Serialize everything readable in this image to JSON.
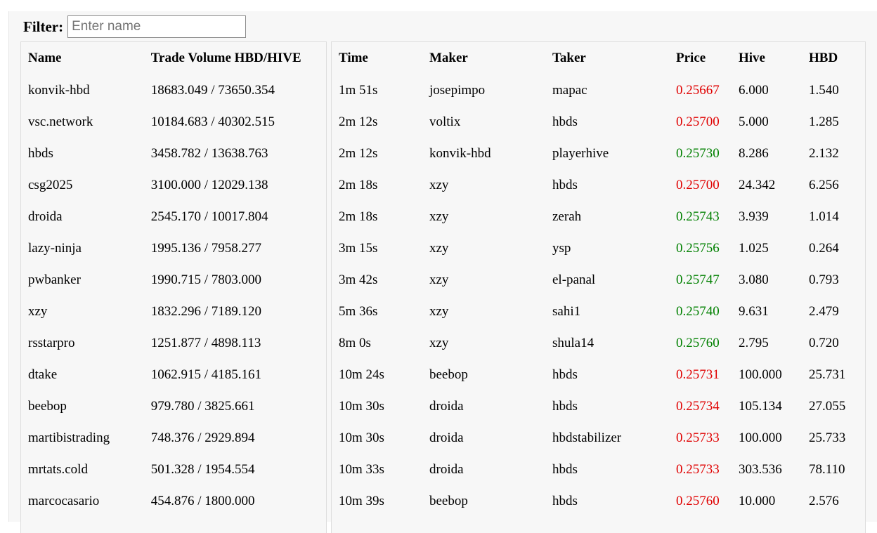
{
  "filter": {
    "label": "Filter:",
    "placeholder": "Enter name",
    "value": ""
  },
  "volume_table": {
    "headers": [
      "Name",
      "Trade Volume HBD/HIVE"
    ],
    "rows": [
      {
        "name": "konvik-hbd",
        "volume": "18683.049 / 73650.354"
      },
      {
        "name": "vsc.network",
        "volume": "10184.683 / 40302.515"
      },
      {
        "name": "hbds",
        "volume": "3458.782 / 13638.763"
      },
      {
        "name": "csg2025",
        "volume": "3100.000 / 12029.138"
      },
      {
        "name": "droida",
        "volume": "2545.170 / 10017.804"
      },
      {
        "name": "lazy-ninja",
        "volume": "1995.136 / 7958.277"
      },
      {
        "name": "pwbanker",
        "volume": "1990.715 / 7803.000"
      },
      {
        "name": "xzy",
        "volume": "1832.296 / 7189.120"
      },
      {
        "name": "rsstarpro",
        "volume": "1251.877 / 4898.113"
      },
      {
        "name": "dtake",
        "volume": "1062.915 / 4185.161"
      },
      {
        "name": "beebop",
        "volume": "979.780 / 3825.661"
      },
      {
        "name": "martibistrading",
        "volume": "748.376 / 2929.894"
      },
      {
        "name": "mrtats.cold",
        "volume": "501.328 / 1954.554"
      },
      {
        "name": "marcocasario",
        "volume": "454.876 / 1800.000"
      }
    ]
  },
  "trades_table": {
    "headers": [
      "Time",
      "Maker",
      "Taker",
      "Price",
      "Hive",
      "HBD"
    ],
    "colors": {
      "down": "#e00000",
      "up": "#008000"
    },
    "rows": [
      {
        "time": "1m 51s",
        "maker": "josepimpo",
        "taker": "mapac",
        "price": "0.25667",
        "dir": "down",
        "hive": "6.000",
        "hbd": "1.540"
      },
      {
        "time": "2m 12s",
        "maker": "voltix",
        "taker": "hbds",
        "price": "0.25700",
        "dir": "down",
        "hive": "5.000",
        "hbd": "1.285"
      },
      {
        "time": "2m 12s",
        "maker": "konvik-hbd",
        "taker": "playerhive",
        "price": "0.25730",
        "dir": "up",
        "hive": "8.286",
        "hbd": "2.132"
      },
      {
        "time": "2m 18s",
        "maker": "xzy",
        "taker": "hbds",
        "price": "0.25700",
        "dir": "down",
        "hive": "24.342",
        "hbd": "6.256"
      },
      {
        "time": "2m 18s",
        "maker": "xzy",
        "taker": "zerah",
        "price": "0.25743",
        "dir": "up",
        "hive": "3.939",
        "hbd": "1.014"
      },
      {
        "time": "3m 15s",
        "maker": "xzy",
        "taker": "ysp",
        "price": "0.25756",
        "dir": "up",
        "hive": "1.025",
        "hbd": "0.264"
      },
      {
        "time": "3m 42s",
        "maker": "xzy",
        "taker": "el-panal",
        "price": "0.25747",
        "dir": "up",
        "hive": "3.080",
        "hbd": "0.793"
      },
      {
        "time": "5m 36s",
        "maker": "xzy",
        "taker": "sahi1",
        "price": "0.25740",
        "dir": "up",
        "hive": "9.631",
        "hbd": "2.479"
      },
      {
        "time": "8m 0s",
        "maker": "xzy",
        "taker": "shula14",
        "price": "0.25760",
        "dir": "up",
        "hive": "2.795",
        "hbd": "0.720"
      },
      {
        "time": "10m 24s",
        "maker": "beebop",
        "taker": "hbds",
        "price": "0.25731",
        "dir": "down",
        "hive": "100.000",
        "hbd": "25.731"
      },
      {
        "time": "10m 30s",
        "maker": "droida",
        "taker": "hbds",
        "price": "0.25734",
        "dir": "down",
        "hive": "105.134",
        "hbd": "27.055"
      },
      {
        "time": "10m 30s",
        "maker": "droida",
        "taker": "hbdstabilizer",
        "price": "0.25733",
        "dir": "down",
        "hive": "100.000",
        "hbd": "25.733"
      },
      {
        "time": "10m 33s",
        "maker": "droida",
        "taker": "hbds",
        "price": "0.25733",
        "dir": "down",
        "hive": "303.536",
        "hbd": "78.110"
      },
      {
        "time": "10m 39s",
        "maker": "beebop",
        "taker": "hbds",
        "price": "0.25760",
        "dir": "down",
        "hive": "10.000",
        "hbd": "2.576"
      }
    ]
  }
}
